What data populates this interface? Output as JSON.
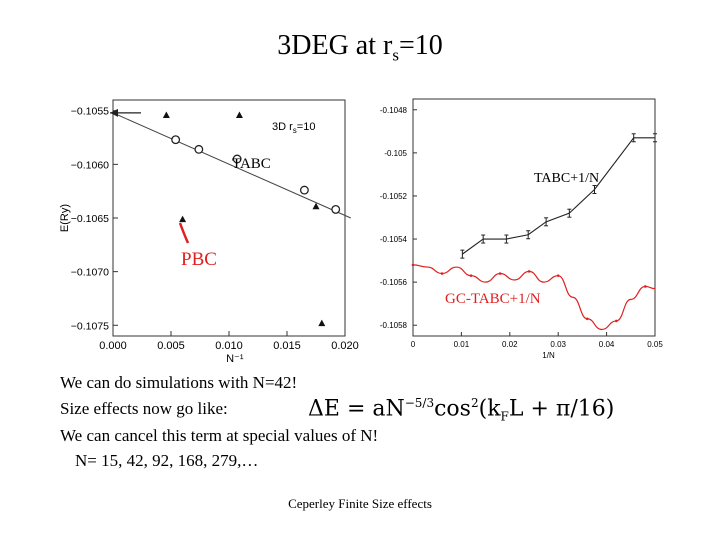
{
  "title": {
    "main": "3DEG  at r",
    "sub": "s",
    "tail": "=10"
  },
  "colors": {
    "red": "#e02020",
    "black": "#000000",
    "grid": "#cccccc"
  },
  "chart_data": [
    {
      "type": "scatter",
      "xlabel": "N⁻¹",
      "ylabel": "E(Ry)",
      "xlim": [
        0.0,
        0.02
      ],
      "ylim": [
        -0.1076,
        -0.1054
      ],
      "xticks": [
        "0.000",
        "0.005",
        "0.010",
        "0.015",
        "0.020"
      ],
      "xtick_values": [
        0.0,
        0.005,
        0.01,
        0.015,
        0.02
      ],
      "yticks": [
        "−0.1055",
        "−0.1060",
        "−0.1065",
        "−0.1070",
        "−0.1075"
      ],
      "ytick_values": [
        -0.1055,
        -0.106,
        -0.1065,
        -0.107,
        -0.1075
      ],
      "legend_text": {
        "main": "3D r",
        "sub": "s",
        "tail": "=10"
      },
      "series": [
        {
          "name": "TABC",
          "marker": "circle",
          "x": [
            0.0054,
            0.0074,
            0.0107,
            0.0165,
            0.0192
          ],
          "y": [
            -0.10577,
            -0.10586,
            -0.10595,
            -0.10624,
            -0.10642
          ]
        },
        {
          "name": "PBC",
          "marker": "triangle",
          "x": [
            0.0046,
            0.006,
            0.0109,
            0.0175,
            0.018
          ],
          "y": [
            -0.10554,
            -0.10651,
            -0.10554,
            -0.10639,
            -0.10748
          ]
        }
      ],
      "fit_line": {
        "x": [
          0.0,
          0.0205
        ],
        "y": [
          -0.10552,
          -0.1065
        ]
      },
      "labels": {
        "tabc": "TABC",
        "pbc": "PBC"
      }
    },
    {
      "type": "line",
      "xlabel": "1/N",
      "xlim": [
        0.0,
        0.05
      ],
      "ylim": [
        -0.10585,
        -0.10475
      ],
      "xticks": [
        "0",
        "0.01",
        "0.02",
        "0.03",
        "0.04",
        "0.05"
      ],
      "xtick_values": [
        0,
        0.01,
        0.02,
        0.03,
        0.04,
        0.05
      ],
      "yticks": [
        "-0.1048",
        "-0.105",
        "-0.1052",
        "-0.1054",
        "-0.1056",
        "-0.1058"
      ],
      "ytick_values": [
        -0.1048,
        -0.105,
        -0.1052,
        -0.1054,
        -0.1056,
        -0.1058
      ],
      "series": [
        {
          "name": "TABC+1/N",
          "x": [
            0.0102,
            0.0145,
            0.0193,
            0.0238,
            0.0275,
            0.0323,
            0.0375,
            0.0456,
            0.05
          ],
          "y": [
            -0.10547,
            -0.1054,
            -0.1054,
            -0.10538,
            -0.10532,
            -0.10528,
            -0.10517,
            -0.10493,
            -0.10493
          ]
        },
        {
          "name": "GC-TABC+1/N",
          "x": [
            0.0,
            0.003,
            0.006,
            0.009,
            0.012,
            0.015,
            0.018,
            0.021,
            0.024,
            0.027,
            0.03,
            0.033,
            0.036,
            0.039,
            0.042,
            0.045,
            0.048,
            0.05
          ],
          "y": [
            -0.10552,
            -0.10553,
            -0.10556,
            -0.10553,
            -0.10557,
            -0.1056,
            -0.10556,
            -0.10559,
            -0.10555,
            -0.1056,
            -0.10557,
            -0.10567,
            -0.10577,
            -0.10582,
            -0.10578,
            -0.10568,
            -0.10562,
            -0.10563
          ]
        }
      ],
      "labels": {
        "tabc": "TABC+1/N",
        "gc": "GC-TABC+1/N"
      }
    }
  ],
  "body": {
    "line1": "We can do simulations with N=42!",
    "line2": "Size effects now go like:",
    "line3": "We can cancel this term at special values of N!",
    "line4": "N= 15, 42, 92, 168, 279,…"
  },
  "formula": {
    "delta": "ΔE = aN",
    "exp": "−5/3",
    "cos": "cos",
    "sq": "2",
    "tail": "(k",
    "kf": "F",
    "end": "L + π/16)"
  },
  "footer": "Ceperley Finite Size effects"
}
